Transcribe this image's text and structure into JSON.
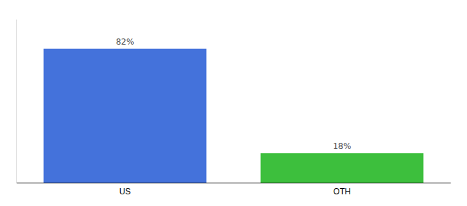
{
  "chart_data": {
    "type": "bar",
    "categories": [
      "US",
      "OTH"
    ],
    "values": [
      82,
      18
    ],
    "value_labels": [
      "82%",
      "18%"
    ],
    "colors": [
      "#4472db",
      "#3dbf3d"
    ],
    "ylim": [
      0,
      100
    ],
    "data_labels": true,
    "tick_labels": "x",
    "grid": false
  }
}
